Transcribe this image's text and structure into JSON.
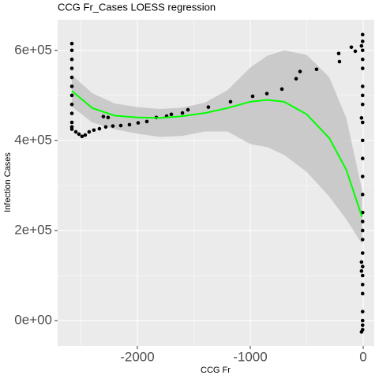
{
  "chart_data": {
    "type": "scatter",
    "title": "CCG Fr_Cases LOESS regression",
    "xlabel": "CCG Fr",
    "ylabel": "Infection Cases",
    "xlim": [
      -2706,
      98
    ],
    "ylim": [
      -56000,
      668000
    ],
    "xticks": [
      -2000,
      -1000,
      0
    ],
    "yticks": [
      {
        "value": 0,
        "label": "0e+00"
      },
      {
        "value": 200000,
        "label": "2e+05"
      },
      {
        "value": 400000,
        "label": "4e+05"
      },
      {
        "value": 600000,
        "label": "6e+05"
      }
    ],
    "xminor": [
      -2500,
      -1500,
      -500
    ],
    "yminor": [
      100000,
      300000,
      500000
    ],
    "grid": true,
    "series": [
      {
        "color": "#000000",
        "x": [
          -2580,
          -2580,
          -2580,
          -2580,
          -2580,
          -2580,
          -2580,
          -2580,
          -2580,
          -2580,
          -2580,
          -2580,
          -2545,
          -2517,
          -2490,
          -2462,
          -2427,
          -2385,
          -2336,
          -2301,
          -2280,
          -2259,
          -2217,
          -2147,
          -2070,
          -1993,
          -1916,
          -1832,
          -1741,
          -1699,
          -1601,
          -1552,
          -1371,
          -1175,
          -979,
          -853,
          -720,
          -594,
          -559,
          -413,
          -217,
          -210,
          -105,
          -70,
          -5,
          -5,
          -5,
          -5,
          -5,
          -5,
          -5,
          -5,
          -5,
          -5,
          -5,
          -5,
          -5,
          -5,
          -5,
          -5,
          -5,
          -5,
          -5,
          -5,
          -5,
          -5,
          -5,
          -5,
          -5,
          -5,
          -15,
          -15,
          -15,
          -15,
          -15
        ],
        "values": [
          615000,
          600000,
          580000,
          560000,
          540000,
          520000,
          500000,
          480000,
          460000,
          440000,
          430000,
          425000,
          419000,
          414000,
          409000,
          412000,
          419000,
          423000,
          426000,
          453000,
          430000,
          451000,
          432000,
          433000,
          435000,
          439000,
          442000,
          451000,
          454000,
          458000,
          461000,
          468000,
          474000,
          486000,
          498000,
          504000,
          514000,
          537000,
          553000,
          558000,
          593000,
          575000,
          607000,
          598000,
          635000,
          620000,
          600000,
          580000,
          560000,
          520000,
          500000,
          480000,
          440000,
          400000,
          360000,
          320000,
          280000,
          240000,
          220000,
          200000,
          180000,
          150000,
          120000,
          100000,
          80000,
          60000,
          20000,
          0,
          -10000,
          -20000,
          610000,
          450000,
          130000,
          110000,
          -25000
        ]
      }
    ],
    "fit": {
      "color": "#00ff00",
      "band_color": "#c4c4c4",
      "x": [
        -2580,
        -2400,
        -2200,
        -2000,
        -1800,
        -1600,
        -1400,
        -1200,
        -1000,
        -850,
        -700,
        -500,
        -300,
        -150,
        -10
      ],
      "y": [
        510000,
        472000,
        455000,
        451000,
        450000,
        454000,
        461000,
        472000,
        486000,
        490000,
        486000,
        458000,
        405000,
        335000,
        230000
      ],
      "upper": [
        545000,
        505000,
        482000,
        474000,
        470000,
        473000,
        484000,
        512000,
        562000,
        588000,
        600000,
        590000,
        540000,
        450000,
        290000
      ],
      "lower": [
        475000,
        440000,
        425000,
        415000,
        408000,
        410000,
        420000,
        420000,
        392000,
        385000,
        368000,
        330000,
        275000,
        225000,
        170000
      ]
    }
  }
}
